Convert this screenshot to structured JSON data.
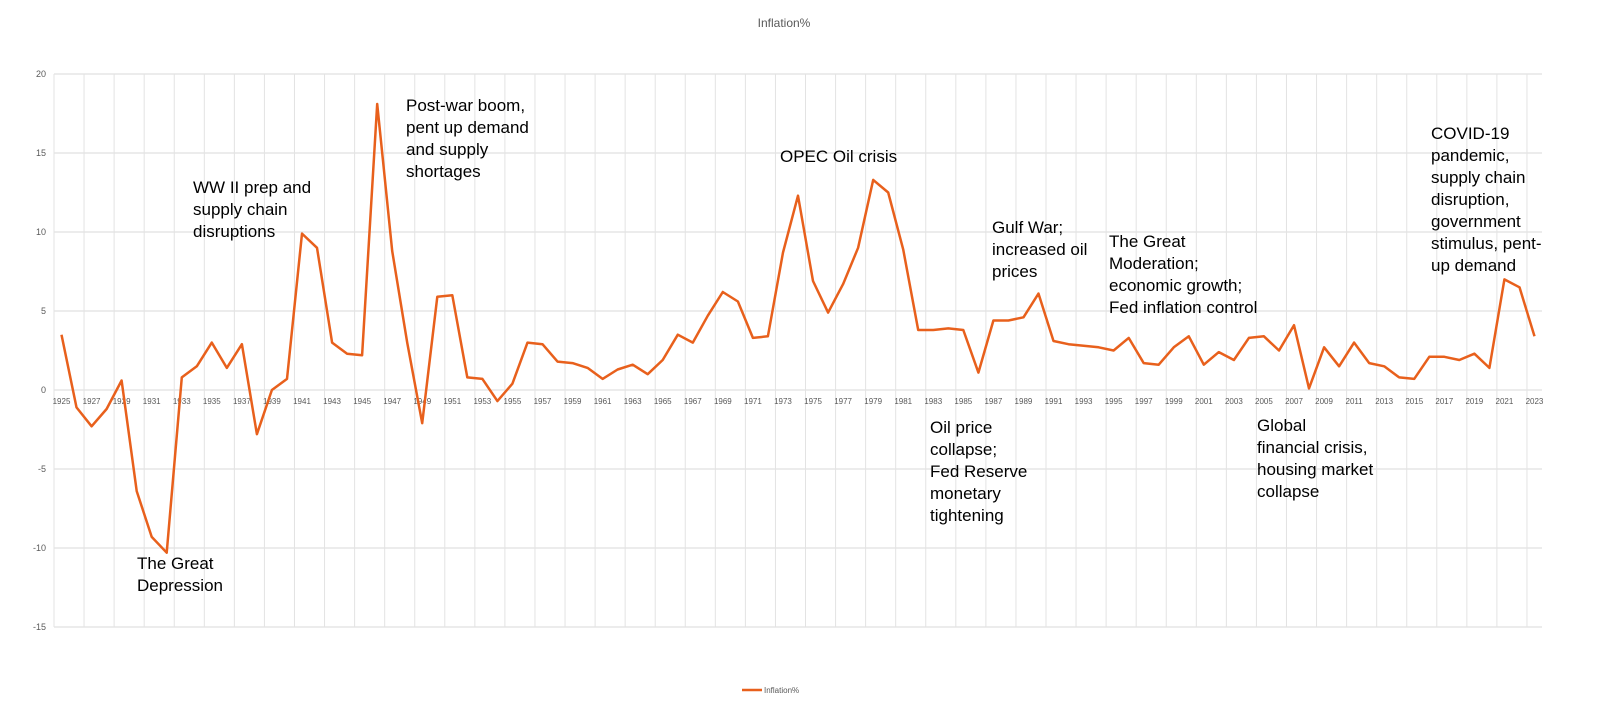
{
  "chart_data": {
    "type": "line",
    "title": "Inflation%",
    "xlabel": "",
    "ylabel": "",
    "ylim": [
      -15,
      20
    ],
    "yticks": [
      -15,
      -10,
      -5,
      0,
      5,
      10,
      15,
      20
    ],
    "grid": true,
    "legend_position": "bottom",
    "x": [
      1925,
      1926,
      1927,
      1928,
      1929,
      1930,
      1931,
      1932,
      1933,
      1934,
      1935,
      1936,
      1937,
      1938,
      1939,
      1940,
      1941,
      1942,
      1943,
      1944,
      1945,
      1946,
      1947,
      1948,
      1949,
      1950,
      1951,
      1952,
      1953,
      1954,
      1955,
      1956,
      1957,
      1958,
      1959,
      1960,
      1961,
      1962,
      1963,
      1964,
      1965,
      1966,
      1967,
      1968,
      1969,
      1970,
      1971,
      1972,
      1973,
      1974,
      1975,
      1976,
      1977,
      1978,
      1979,
      1980,
      1981,
      1982,
      1983,
      1984,
      1985,
      1986,
      1987,
      1988,
      1989,
      1990,
      1991,
      1992,
      1993,
      1994,
      1995,
      1996,
      1997,
      1998,
      1999,
      2000,
      2001,
      2002,
      2003,
      2004,
      2005,
      2006,
      2007,
      2008,
      2009,
      2010,
      2011,
      2012,
      2013,
      2014,
      2015,
      2016,
      2017,
      2018,
      2019,
      2020,
      2021,
      2022,
      2023
    ],
    "x_tick_labels": [
      "1925",
      "1927",
      "1929",
      "1931",
      "1933",
      "1935",
      "1937",
      "1939",
      "1941",
      "1943",
      "1945",
      "1947",
      "1949",
      "1951",
      "1953",
      "1955",
      "1957",
      "1959",
      "1961",
      "1963",
      "1965",
      "1967",
      "1969",
      "1971",
      "1973",
      "1975",
      "1977",
      "1979",
      "1981",
      "1983",
      "1985",
      "1987",
      "1989",
      "1991",
      "1993",
      "1995",
      "1997",
      "1999",
      "2001",
      "2003",
      "2005",
      "2007",
      "2009",
      "2011",
      "2013",
      "2015",
      "2017",
      "2019",
      "2021",
      "2023"
    ],
    "series": [
      {
        "name": "Inflation%",
        "color": "#E8601C",
        "values": [
          3.5,
          -1.1,
          -2.3,
          -1.2,
          0.6,
          -6.4,
          -9.3,
          -10.3,
          0.8,
          1.5,
          3.0,
          1.4,
          2.9,
          -2.8,
          0.0,
          0.7,
          9.9,
          9.0,
          3.0,
          2.3,
          2.2,
          18.1,
          8.8,
          3.0,
          -2.1,
          5.9,
          6.0,
          0.8,
          0.7,
          -0.7,
          0.4,
          3.0,
          2.9,
          1.8,
          1.7,
          1.4,
          0.7,
          1.3,
          1.6,
          1.0,
          1.9,
          3.5,
          3.0,
          4.7,
          6.2,
          5.6,
          3.3,
          3.4,
          8.7,
          12.3,
          6.9,
          4.9,
          6.7,
          9.0,
          13.3,
          12.5,
          8.9,
          3.8,
          3.8,
          3.9,
          3.8,
          1.1,
          4.4,
          4.4,
          4.6,
          6.1,
          3.1,
          2.9,
          2.8,
          2.7,
          2.5,
          3.3,
          1.7,
          1.6,
          2.7,
          3.4,
          1.6,
          2.4,
          1.9,
          3.3,
          3.4,
          2.5,
          4.1,
          0.1,
          2.7,
          1.5,
          3.0,
          1.7,
          1.5,
          0.8,
          0.7,
          2.1,
          2.1,
          1.9,
          2.3,
          1.4,
          7.0,
          6.5,
          3.4
        ]
      }
    ],
    "annotations": [
      {
        "id": "great-depression",
        "lines": [
          "The Great",
          "Depression"
        ]
      },
      {
        "id": "wwii",
        "lines": [
          "WW II prep and",
          "supply chain",
          "disruptions"
        ]
      },
      {
        "id": "post-war",
        "lines": [
          "Post-war boom,",
          "pent up demand",
          "and supply",
          "shortages"
        ]
      },
      {
        "id": "opec",
        "lines": [
          "OPEC Oil crisis"
        ]
      },
      {
        "id": "oil-collapse",
        "lines": [
          "Oil price",
          "collapse;",
          "Fed Reserve",
          "monetary",
          "tightening"
        ]
      },
      {
        "id": "gulf-war",
        "lines": [
          "Gulf War;",
          "increased oil",
          "prices"
        ]
      },
      {
        "id": "great-moderation",
        "lines": [
          "The Great",
          "Moderation;",
          "economic growth;",
          "Fed inflation control"
        ]
      },
      {
        "id": "gfc",
        "lines": [
          "Global",
          "financial crisis,",
          "housing market",
          "collapse"
        ]
      },
      {
        "id": "covid",
        "lines": [
          "COVID-19",
          "pandemic,",
          "supply chain",
          "disruption,",
          "government",
          "stimulus, pent-",
          "up demand"
        ]
      }
    ]
  }
}
